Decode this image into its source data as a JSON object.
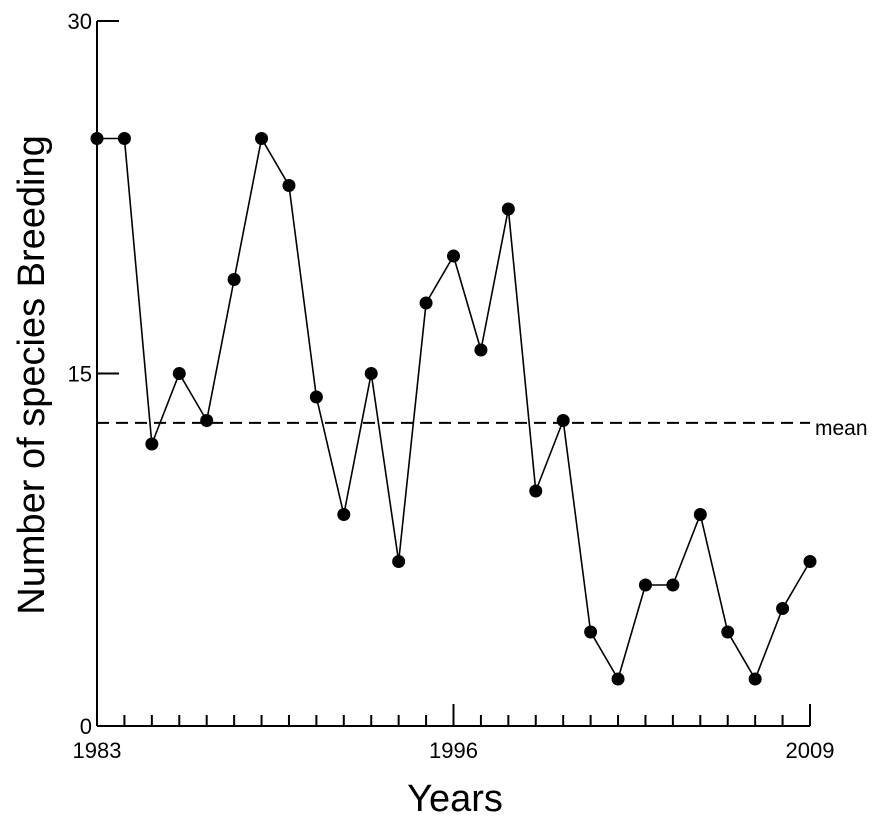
{
  "chart_data": {
    "type": "line",
    "xlabel": "Years",
    "ylabel": "Number of species Breeding",
    "xlim": [
      1983,
      2009
    ],
    "ylim": [
      0,
      30
    ],
    "x_ticks": [
      1983,
      1996,
      2009
    ],
    "y_ticks": [
      0,
      15,
      30
    ],
    "grid": false,
    "legend": null,
    "series": [
      {
        "x": [
          1983,
          1984,
          1985,
          1986,
          1987,
          1988,
          1989,
          1990,
          1991,
          1992,
          1993,
          1994,
          1995,
          1996,
          1997,
          1998,
          1999,
          2000,
          2001,
          2002,
          2003,
          2004,
          2005,
          2006,
          2007,
          2008,
          2009
        ],
        "values": [
          25,
          25,
          12,
          15,
          13,
          19,
          25,
          23,
          14,
          9,
          15,
          7,
          18,
          20,
          16,
          22,
          10,
          13,
          4,
          2,
          6,
          6,
          9,
          4,
          2,
          5,
          7
        ]
      }
    ],
    "reference_line": {
      "label": "mean",
      "value": 12.9,
      "style": "dashed"
    }
  },
  "colors": {
    "line": "#000000",
    "marker": "#000000",
    "axis": "#000000"
  }
}
